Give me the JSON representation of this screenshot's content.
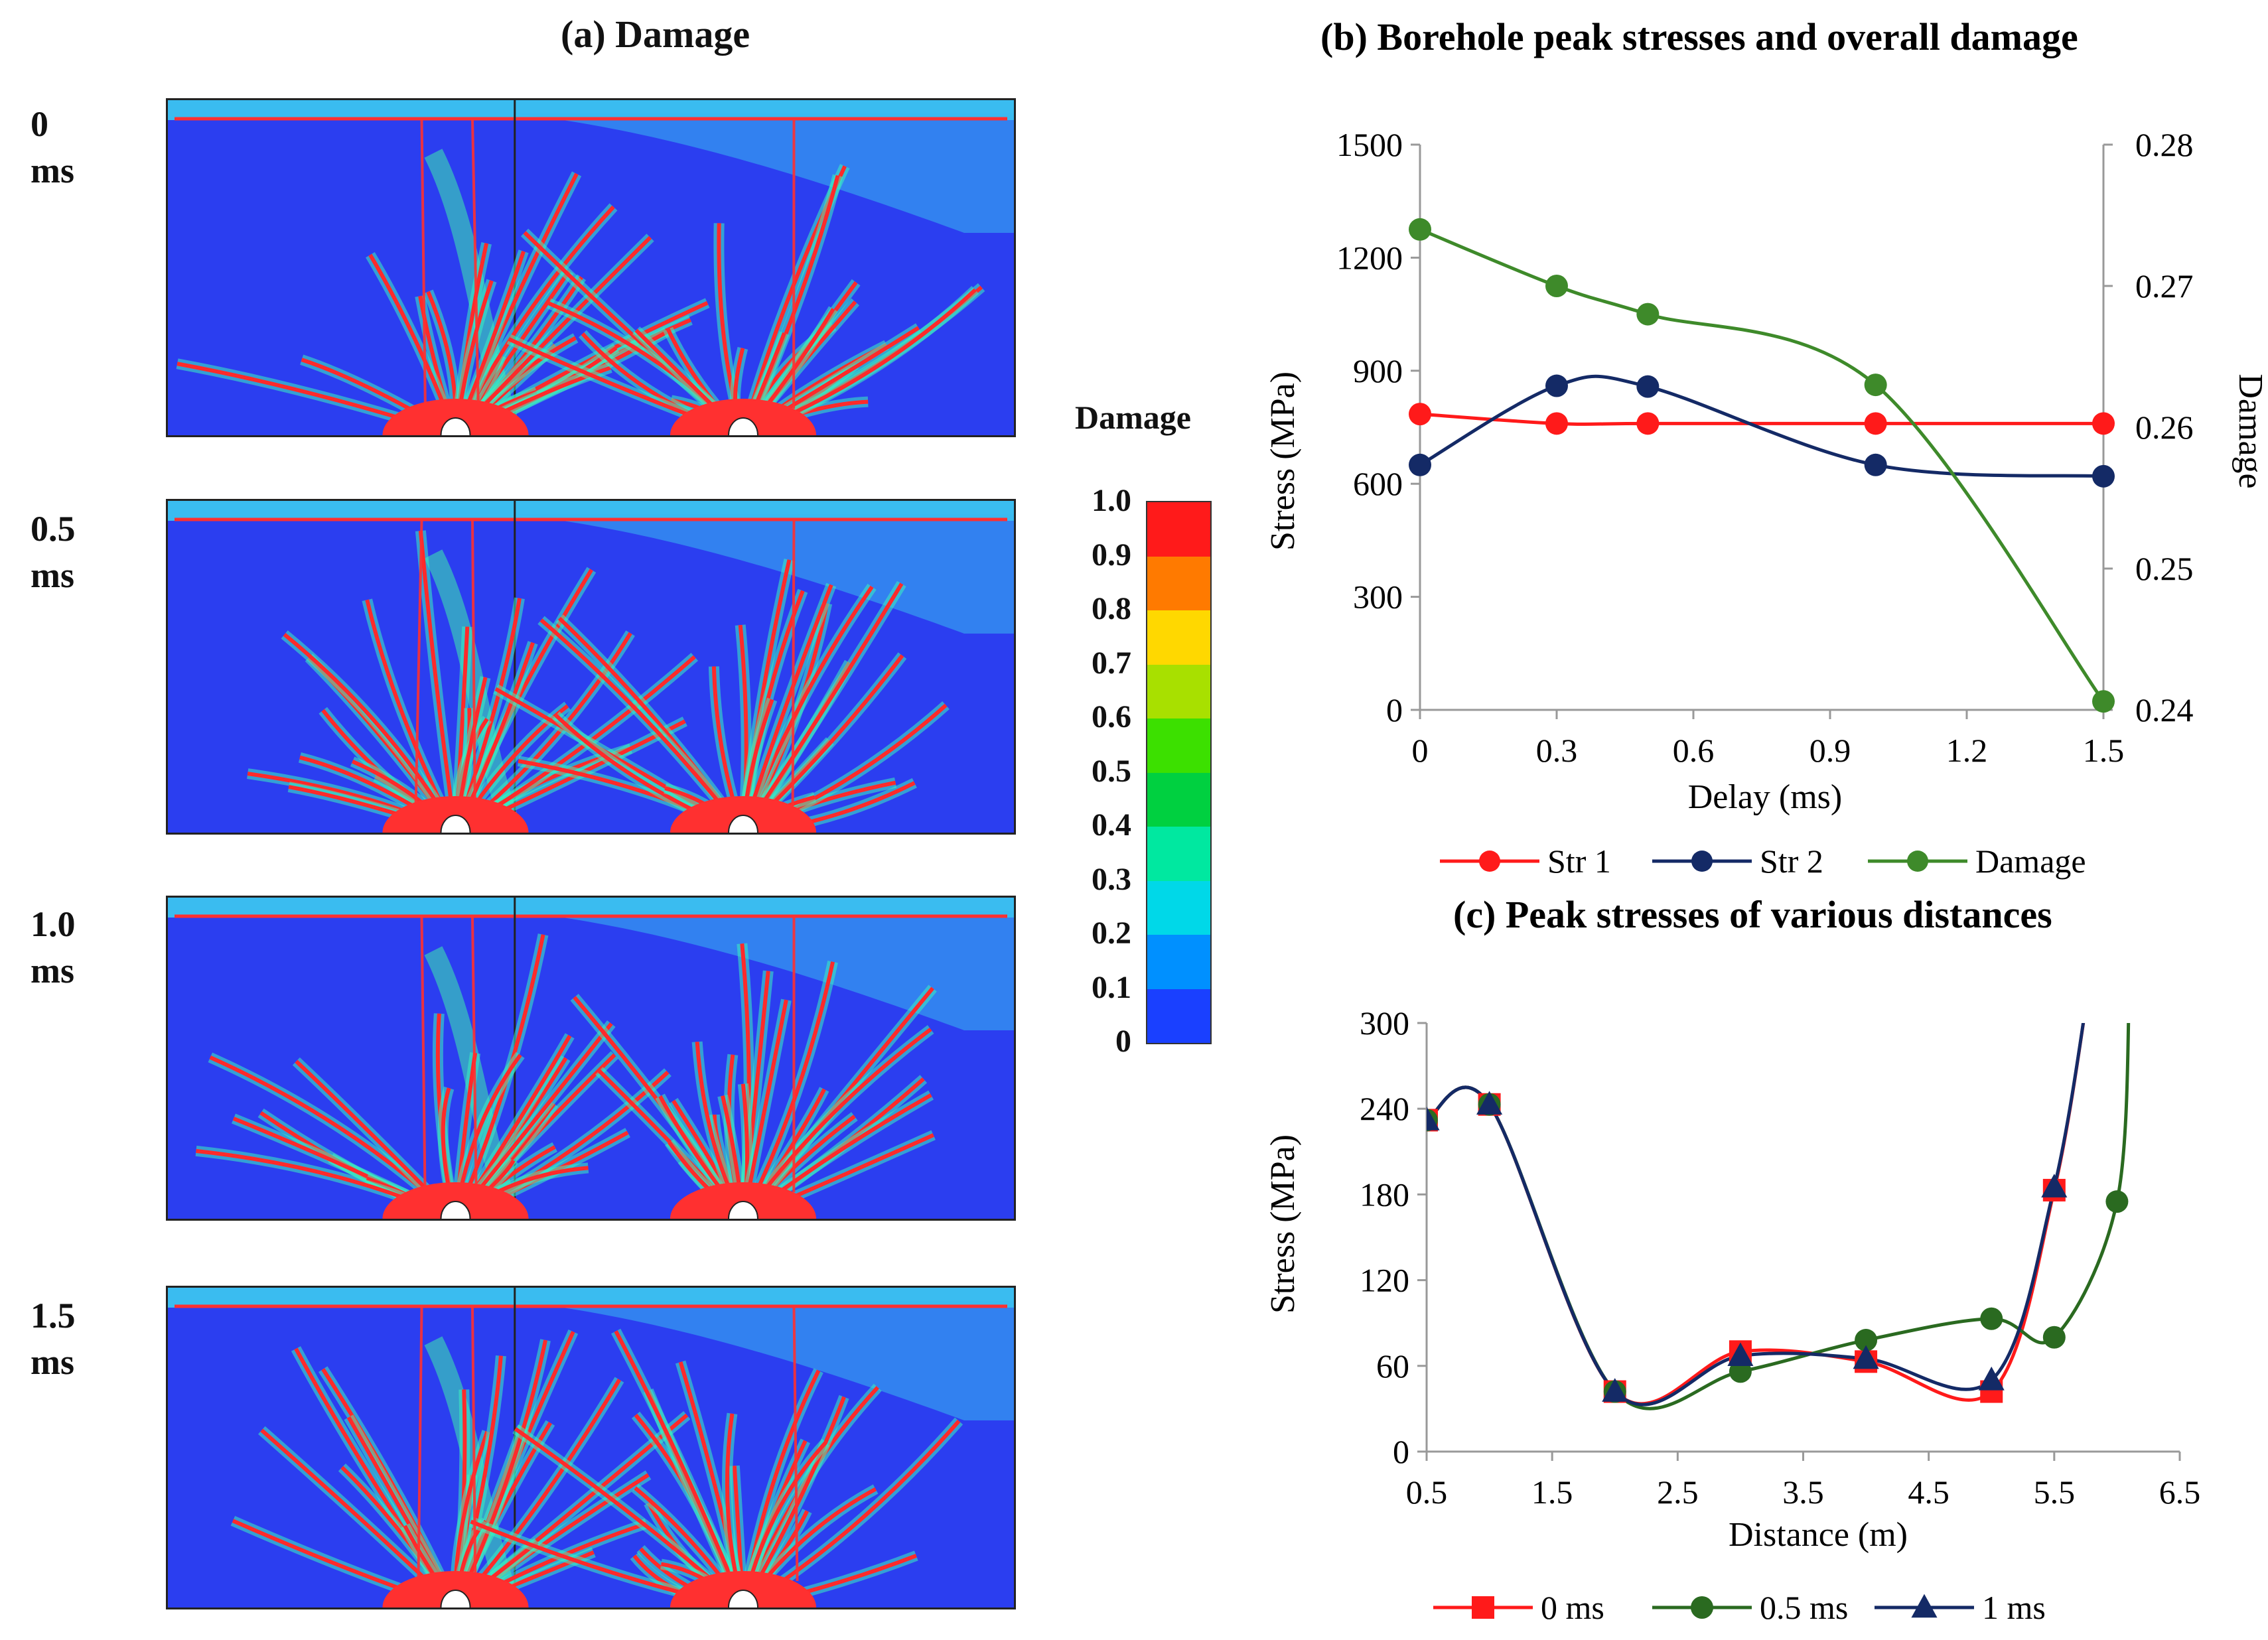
{
  "panel_a": {
    "title": "(a)   Damage",
    "rows": [
      {
        "value": "0",
        "unit": "ms"
      },
      {
        "value": "0.5",
        "unit": "ms"
      },
      {
        "value": "1.0",
        "unit": "ms"
      },
      {
        "value": "1.5",
        "unit": "ms"
      }
    ],
    "colorbar": {
      "title": "Damage",
      "ticks": [
        "1.0",
        "0.9",
        "0.8",
        "0.7",
        "0.6",
        "0.5",
        "0.4",
        "0.3",
        "0.2",
        "0.1",
        "0"
      ],
      "colors": [
        "#ff1a1a",
        "#ff7a00",
        "#ffd800",
        "#a8e000",
        "#3ce000",
        "#00d040",
        "#00e8a0",
        "#00d8e8",
        "#0090ff",
        "#1a40ff"
      ]
    }
  },
  "chart_data": [
    {
      "type": "line",
      "title": "(b)   Borehole peak stresses and overall damage",
      "xlabel": "Delay (ms)",
      "ylabel": "Stress (MPa)",
      "y2label": "Damage",
      "x_ticks": [
        "0",
        "0.3",
        "0.6",
        "0.9",
        "1.2",
        "1.5"
      ],
      "y_ticks": [
        "0",
        "300",
        "600",
        "900",
        "1200",
        "1500"
      ],
      "y2_ticks": [
        "0.24",
        "0.25",
        "0.26",
        "0.27",
        "0.28"
      ],
      "xlim": [
        0,
        1.5
      ],
      "ylim": [
        0,
        1500
      ],
      "y2lim": [
        0.24,
        0.28
      ],
      "legend_position": "bottom",
      "series": [
        {
          "name": "Str 1",
          "axis": "left",
          "color": "#ff1a1a",
          "x": [
            0,
            0.3,
            0.5,
            1.0,
            1.5
          ],
          "values": [
            785,
            760,
            760,
            760,
            760
          ]
        },
        {
          "name": "Str 2",
          "axis": "left",
          "color": "#142a66",
          "x": [
            0,
            0.3,
            0.5,
            1.0,
            1.5
          ],
          "values": [
            650,
            860,
            858,
            650,
            620
          ]
        },
        {
          "name": "Damage",
          "axis": "right",
          "color": "#3e8a2a",
          "x": [
            0,
            0.3,
            0.5,
            1.0,
            1.5
          ],
          "values": [
            0.274,
            0.27,
            0.268,
            0.263,
            0.2406
          ]
        }
      ]
    },
    {
      "type": "line",
      "title": "(c)   Peak stresses of various distances",
      "xlabel": "Distance (m)",
      "ylabel": "Stress (MPa)",
      "x_ticks": [
        "0.5",
        "1.5",
        "2.5",
        "3.5",
        "4.5",
        "5.5",
        "6.5"
      ],
      "y_ticks": [
        "0",
        "60",
        "120",
        "180",
        "240",
        "300"
      ],
      "xlim": [
        0.5,
        6.5
      ],
      "ylim": [
        0,
        300
      ],
      "legend_position": "bottom",
      "series": [
        {
          "name": "0 ms",
          "marker": "square",
          "color": "#ff1a1a",
          "x": [
            0.5,
            1.0,
            2.0,
            3.0,
            4.0,
            5.0,
            5.5
          ],
          "values": [
            232,
            243,
            42,
            70,
            63,
            42,
            183
          ]
        },
        {
          "name": "0.5 ms",
          "marker": "circle",
          "color": "#2a6a20",
          "x": [
            0.5,
            1.0,
            2.0,
            3.0,
            4.0,
            5.0,
            5.5,
            6.0
          ],
          "values": [
            232,
            243,
            42,
            56,
            78,
            93,
            80,
            175
          ]
        },
        {
          "name": "1 ms",
          "marker": "triangle",
          "color": "#142a66",
          "x": [
            0.5,
            1.0,
            2.0,
            3.0,
            4.0,
            5.0,
            5.5
          ],
          "values": [
            232,
            243,
            42,
            67,
            65,
            50,
            185
          ]
        }
      ]
    }
  ]
}
